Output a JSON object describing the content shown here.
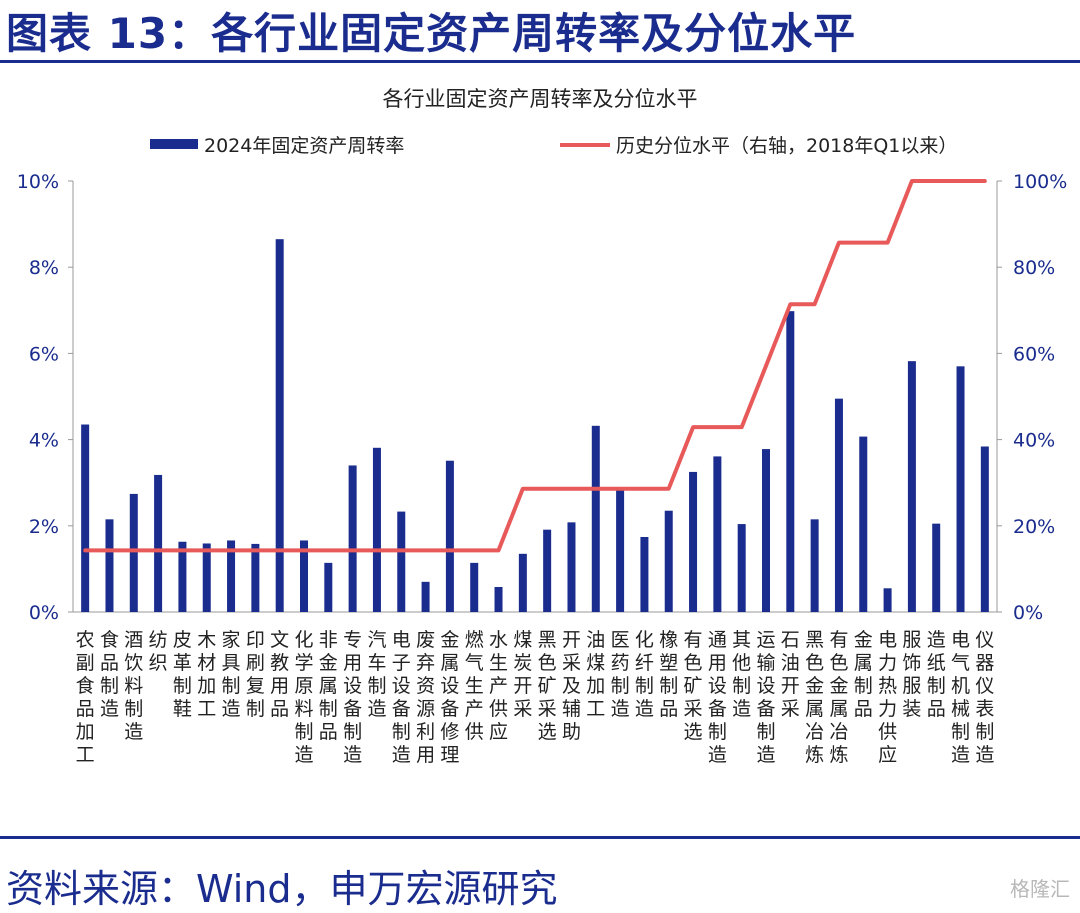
{
  "header": {
    "title": "图表 13：各行业固定资产周转率及分位水平"
  },
  "footer": {
    "source": "资料来源：Wind，申万宏源研究",
    "watermark": "格隆汇"
  },
  "chart_data": {
    "type": "bar",
    "title": "各行业固定资产周转率及分位水平",
    "legend_placement": "top",
    "grid": false,
    "categories": [
      "农副食品加工",
      "食品制造",
      "酒饮料制造",
      "纺织",
      "皮革制鞋",
      "木材加工",
      "家具制造",
      "印刷复制",
      "文教用品",
      "化学原料制造",
      "非金属制品",
      "专用设备制造",
      "汽车制造",
      "电子设备制造",
      "废弃资源利用",
      "金属设备修理",
      "燃气生产供",
      "水生产供应",
      "煤炭开采",
      "黑色矿采选",
      "开采及辅助",
      "油煤加工",
      "医药制造",
      "化纤制造",
      "橡塑制品",
      "有色矿采选",
      "通用设备制造",
      "其他制造",
      "运输设备制造",
      "石油开采",
      "黑色金属冶炼",
      "有色金属冶炼",
      "金属制品",
      "电力热力供应",
      "服饰服装",
      "造纸制品",
      "电气机械制造",
      "仪器仪表制造"
    ],
    "y_left": {
      "ticks": [
        "0%",
        "2%",
        "4%",
        "6%",
        "8%",
        "10%"
      ],
      "ylim": [
        0,
        10
      ]
    },
    "y_right": {
      "ticks": [
        "0%",
        "20%",
        "40%",
        "60%",
        "80%",
        "100%"
      ],
      "ylim": [
        0,
        100
      ]
    },
    "series": [
      {
        "name": "2024年固定资产周转率",
        "type": "bar",
        "axis": "left",
        "color": "#1a2c8e",
        "values": [
          4.35,
          2.15,
          2.74,
          3.18,
          1.63,
          1.59,
          1.66,
          1.58,
          8.65,
          1.66,
          1.14,
          3.4,
          3.81,
          2.33,
          0.7,
          3.51,
          1.14,
          0.58,
          1.35,
          1.91,
          2.08,
          4.32,
          2.84,
          1.74,
          2.35,
          3.25,
          3.61,
          2.04,
          3.78,
          6.98,
          2.15,
          4.95,
          4.07,
          0.55,
          5.82,
          2.05,
          5.7,
          3.84
        ]
      },
      {
        "name": "历史分位水平（右轴，2018年Q1以来）",
        "type": "line",
        "axis": "right",
        "color": "#e8595a",
        "values": [
          14.3,
          14.3,
          14.3,
          14.3,
          14.3,
          14.3,
          14.3,
          14.3,
          14.3,
          14.3,
          14.3,
          14.3,
          14.3,
          14.3,
          14.3,
          14.3,
          14.3,
          14.3,
          28.6,
          28.6,
          28.6,
          28.6,
          28.6,
          28.6,
          28.6,
          42.9,
          42.9,
          42.9,
          57.1,
          71.4,
          71.4,
          85.7,
          85.7,
          85.7,
          100,
          100,
          100,
          100
        ]
      }
    ]
  }
}
